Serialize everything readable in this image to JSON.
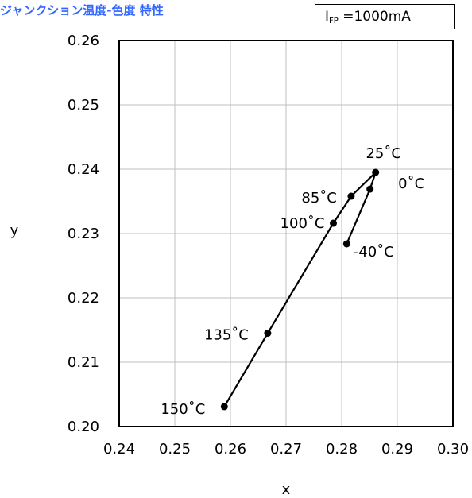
{
  "header": {
    "title": "ジャンクション温度-色度 特性",
    "condition_main": "I",
    "condition_sub": "FP",
    "condition_value": " =1000mA"
  },
  "chart_data": {
    "type": "line",
    "title": "ジャンクション温度-色度 特性",
    "xlabel": "x",
    "ylabel": "y",
    "xlim": [
      0.24,
      0.3
    ],
    "ylim": [
      0.2,
      0.26
    ],
    "xticks": [
      "0.24",
      "0.25",
      "0.26",
      "0.27",
      "0.28",
      "0.29",
      "0.30"
    ],
    "yticks": [
      "0.20",
      "0.21",
      "0.22",
      "0.23",
      "0.24",
      "0.25",
      "0.26"
    ],
    "grid": true,
    "series": [
      {
        "points": [
          {
            "x": 0.2809,
            "y": 0.2284,
            "label": "-40˚C"
          },
          {
            "x": 0.2851,
            "y": 0.2369,
            "label": "0˚C"
          },
          {
            "x": 0.2861,
            "y": 0.2395,
            "label": "25˚C"
          },
          {
            "x": 0.2817,
            "y": 0.2358,
            "label": "85˚C"
          },
          {
            "x": 0.2785,
            "y": 0.2316,
            "label": "100˚C"
          },
          {
            "x": 0.2667,
            "y": 0.2145,
            "label": "135˚C"
          },
          {
            "x": 0.2589,
            "y": 0.2031,
            "label": "150˚C"
          }
        ]
      }
    ]
  }
}
